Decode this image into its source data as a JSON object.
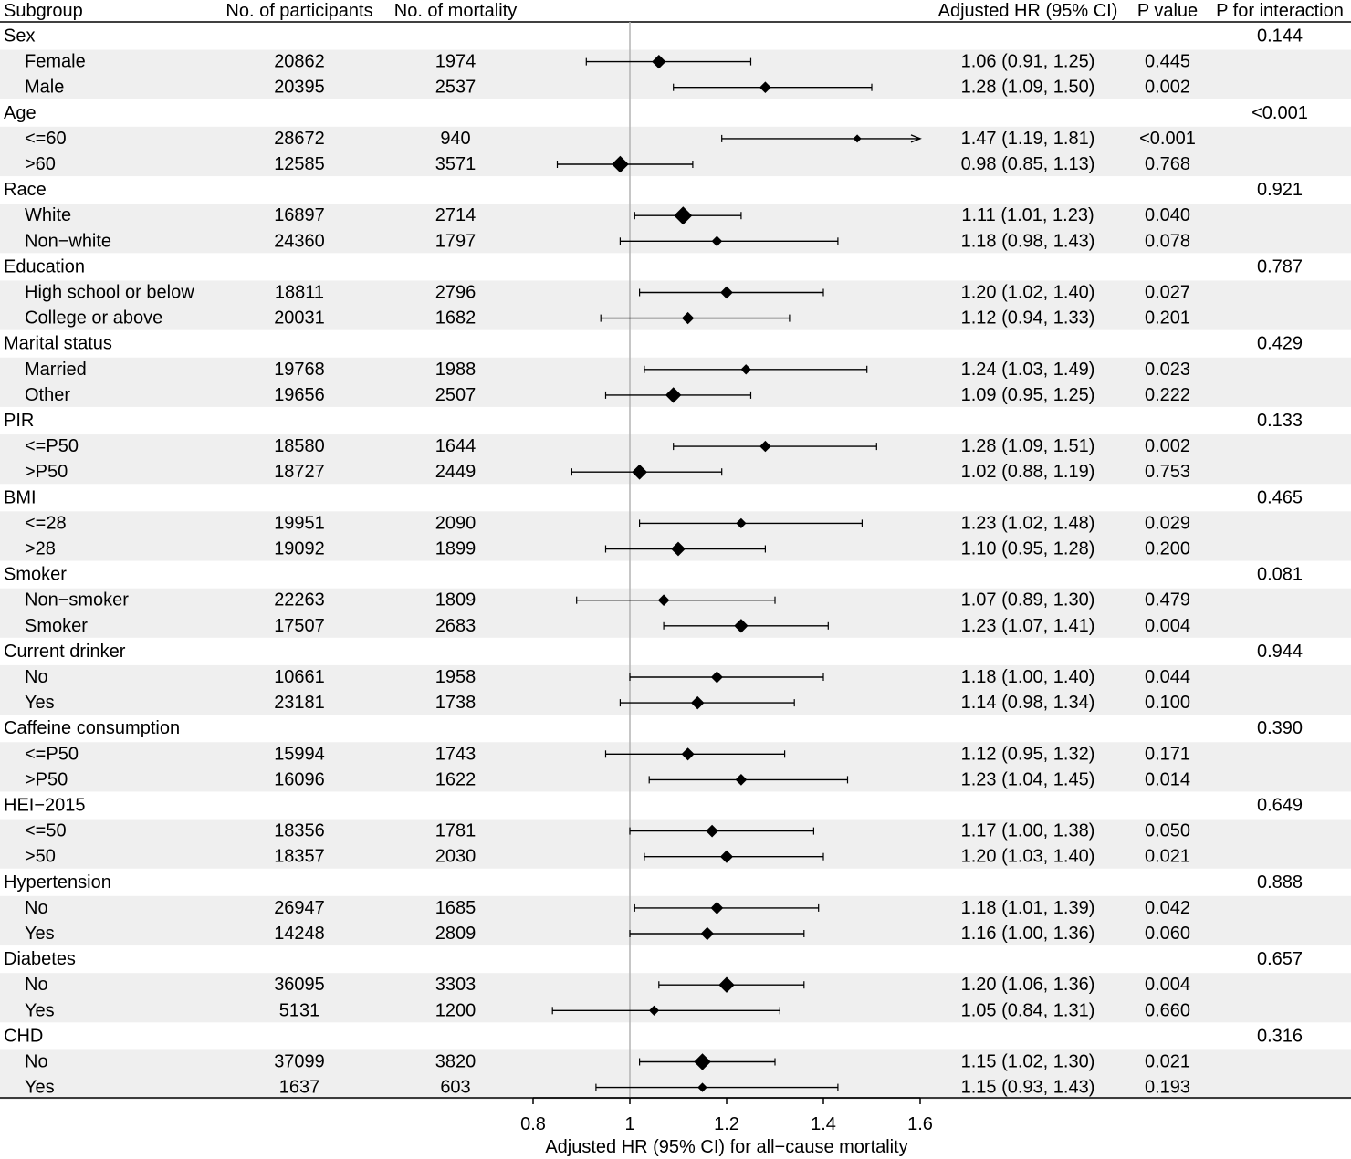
{
  "headers": {
    "subgroup": "Subgroup",
    "participants": "No. of participants",
    "mortality": "No. of mortality",
    "hr": "Adjusted HR (95% CI)",
    "p": "P value",
    "p_interaction": "P for interaction"
  },
  "xlabel": "Adjusted HR (95% CI) for all−cause mortality",
  "chart_data": {
    "type": "forest",
    "reference_line": 1,
    "xlim": [
      0.8,
      1.6
    ],
    "ticks": [
      "0.8",
      "1",
      "1.2",
      "1.4",
      "1.6"
    ],
    "xlabel": "Adjusted HR (95% CI) for all−cause mortality",
    "groups": [
      {
        "name": "Sex",
        "p_interaction": "0.144",
        "rows": [
          {
            "label": "Female",
            "n": "20862",
            "deaths": "1974",
            "hr": 1.06,
            "lo": 0.91,
            "hi": 1.25,
            "hr_text": "1.06 (0.91, 1.25)",
            "p": "0.445"
          },
          {
            "label": "Male",
            "n": "20395",
            "deaths": "2537",
            "hr": 1.28,
            "lo": 1.09,
            "hi": 1.5,
            "hr_text": "1.28 (1.09, 1.50)",
            "p": "0.002"
          }
        ]
      },
      {
        "name": "Age",
        "p_interaction": "<0.001",
        "rows": [
          {
            "label": "<=60",
            "n": "28672",
            "deaths": "940",
            "hr": 1.47,
            "lo": 1.19,
            "hi": 1.81,
            "hr_text": "1.47 (1.19, 1.81)",
            "p": "<0.001"
          },
          {
            "label": ">60",
            "n": "12585",
            "deaths": "3571",
            "hr": 0.98,
            "lo": 0.85,
            "hi": 1.13,
            "hr_text": "0.98 (0.85, 1.13)",
            "p": "0.768"
          }
        ]
      },
      {
        "name": "Race",
        "p_interaction": "0.921",
        "rows": [
          {
            "label": "White",
            "n": "16897",
            "deaths": "2714",
            "hr": 1.11,
            "lo": 1.01,
            "hi": 1.23,
            "hr_text": "1.11 (1.01, 1.23)",
            "p": "0.040"
          },
          {
            "label": "Non−white",
            "n": "24360",
            "deaths": "1797",
            "hr": 1.18,
            "lo": 0.98,
            "hi": 1.43,
            "hr_text": "1.18 (0.98, 1.43)",
            "p": "0.078"
          }
        ]
      },
      {
        "name": "Education",
        "p_interaction": "0.787",
        "rows": [
          {
            "label": "High school or below",
            "n": "18811",
            "deaths": "2796",
            "hr": 1.2,
            "lo": 1.02,
            "hi": 1.4,
            "hr_text": "1.20 (1.02, 1.40)",
            "p": "0.027"
          },
          {
            "label": "College or above",
            "n": "20031",
            "deaths": "1682",
            "hr": 1.12,
            "lo": 0.94,
            "hi": 1.33,
            "hr_text": "1.12 (0.94, 1.33)",
            "p": "0.201"
          }
        ]
      },
      {
        "name": "Marital status",
        "p_interaction": "0.429",
        "rows": [
          {
            "label": "Married",
            "n": "19768",
            "deaths": "1988",
            "hr": 1.24,
            "lo": 1.03,
            "hi": 1.49,
            "hr_text": "1.24 (1.03, 1.49)",
            "p": "0.023"
          },
          {
            "label": "Other",
            "n": "19656",
            "deaths": "2507",
            "hr": 1.09,
            "lo": 0.95,
            "hi": 1.25,
            "hr_text": "1.09 (0.95, 1.25)",
            "p": "0.222"
          }
        ]
      },
      {
        "name": "PIR",
        "p_interaction": "0.133",
        "rows": [
          {
            "label": "<=P50",
            "n": "18580",
            "deaths": "1644",
            "hr": 1.28,
            "lo": 1.09,
            "hi": 1.51,
            "hr_text": "1.28 (1.09, 1.51)",
            "p": "0.002"
          },
          {
            "label": ">P50",
            "n": "18727",
            "deaths": "2449",
            "hr": 1.02,
            "lo": 0.88,
            "hi": 1.19,
            "hr_text": "1.02 (0.88, 1.19)",
            "p": "0.753"
          }
        ]
      },
      {
        "name": "BMI",
        "p_interaction": "0.465",
        "rows": [
          {
            "label": "<=28",
            "n": "19951",
            "deaths": "2090",
            "hr": 1.23,
            "lo": 1.02,
            "hi": 1.48,
            "hr_text": "1.23 (1.02, 1.48)",
            "p": "0.029"
          },
          {
            "label": ">28",
            "n": "19092",
            "deaths": "1899",
            "hr": 1.1,
            "lo": 0.95,
            "hi": 1.28,
            "hr_text": "1.10 (0.95, 1.28)",
            "p": "0.200"
          }
        ]
      },
      {
        "name": "Smoker",
        "p_interaction": "0.081",
        "rows": [
          {
            "label": "Non−smoker",
            "n": "22263",
            "deaths": "1809",
            "hr": 1.07,
            "lo": 0.89,
            "hi": 1.3,
            "hr_text": "1.07 (0.89, 1.30)",
            "p": "0.479"
          },
          {
            "label": "Smoker",
            "n": "17507",
            "deaths": "2683",
            "hr": 1.23,
            "lo": 1.07,
            "hi": 1.41,
            "hr_text": "1.23 (1.07, 1.41)",
            "p": "0.004"
          }
        ]
      },
      {
        "name": "Current drinker",
        "p_interaction": "0.944",
        "rows": [
          {
            "label": "No",
            "n": "10661",
            "deaths": "1958",
            "hr": 1.18,
            "lo": 1.0,
            "hi": 1.4,
            "hr_text": "1.18 (1.00, 1.40)",
            "p": "0.044"
          },
          {
            "label": "Yes",
            "n": "23181",
            "deaths": "1738",
            "hr": 1.14,
            "lo": 0.98,
            "hi": 1.34,
            "hr_text": "1.14 (0.98, 1.34)",
            "p": "0.100"
          }
        ]
      },
      {
        "name": "Caffeine consumption",
        "p_interaction": "0.390",
        "rows": [
          {
            "label": "<=P50",
            "n": "15994",
            "deaths": "1743",
            "hr": 1.12,
            "lo": 0.95,
            "hi": 1.32,
            "hr_text": "1.12 (0.95, 1.32)",
            "p": "0.171"
          },
          {
            "label": ">P50",
            "n": "16096",
            "deaths": "1622",
            "hr": 1.23,
            "lo": 1.04,
            "hi": 1.45,
            "hr_text": "1.23 (1.04, 1.45)",
            "p": "0.014"
          }
        ]
      },
      {
        "name": "HEI−2015",
        "p_interaction": "0.649",
        "rows": [
          {
            "label": "<=50",
            "n": "18356",
            "deaths": "1781",
            "hr": 1.17,
            "lo": 1.0,
            "hi": 1.38,
            "hr_text": "1.17 (1.00, 1.38)",
            "p": "0.050"
          },
          {
            "label": ">50",
            "n": "18357",
            "deaths": "2030",
            "hr": 1.2,
            "lo": 1.03,
            "hi": 1.4,
            "hr_text": "1.20 (1.03, 1.40)",
            "p": "0.021"
          }
        ]
      },
      {
        "name": "Hypertension",
        "p_interaction": "0.888",
        "rows": [
          {
            "label": "No",
            "n": "26947",
            "deaths": "1685",
            "hr": 1.18,
            "lo": 1.01,
            "hi": 1.39,
            "hr_text": "1.18 (1.01, 1.39)",
            "p": "0.042"
          },
          {
            "label": "Yes",
            "n": "14248",
            "deaths": "2809",
            "hr": 1.16,
            "lo": 1.0,
            "hi": 1.36,
            "hr_text": "1.16 (1.00, 1.36)",
            "p": "0.060"
          }
        ]
      },
      {
        "name": "Diabetes",
        "p_interaction": "0.657",
        "rows": [
          {
            "label": "No",
            "n": "36095",
            "deaths": "3303",
            "hr": 1.2,
            "lo": 1.06,
            "hi": 1.36,
            "hr_text": "1.20 (1.06, 1.36)",
            "p": "0.004"
          },
          {
            "label": "Yes",
            "n": "5131",
            "deaths": "1200",
            "hr": 1.05,
            "lo": 0.84,
            "hi": 1.31,
            "hr_text": "1.05 (0.84, 1.31)",
            "p": "0.660"
          }
        ]
      },
      {
        "name": "CHD",
        "p_interaction": "0.316",
        "rows": [
          {
            "label": "No",
            "n": "37099",
            "deaths": "3820",
            "hr": 1.15,
            "lo": 1.02,
            "hi": 1.3,
            "hr_text": "1.15 (1.02, 1.30)",
            "p": "0.021"
          },
          {
            "label": "Yes",
            "n": "1637",
            "deaths": "603",
            "hr": 1.15,
            "lo": 0.93,
            "hi": 1.43,
            "hr_text": "1.15 (0.93, 1.43)",
            "p": "0.193"
          }
        ]
      }
    ]
  }
}
